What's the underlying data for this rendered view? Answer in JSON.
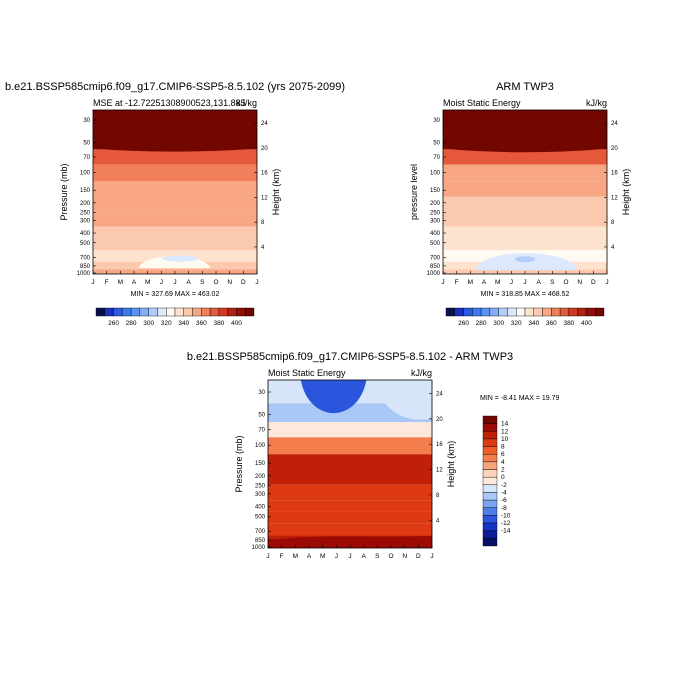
{
  "chart_data": [
    {
      "type": "heatmap",
      "title": "b.e21.BSSP585cmip6.f09_g17.CMIP6-SSP5-8.5.102 (yrs 2075-2099)",
      "left_label": "MSE at -12.72251308900523,131.885",
      "right_label": "kJ/kg",
      "ylabel": "Pressure (mb)",
      "ylabel_right": "Height (km)",
      "x_ticks": [
        "J",
        "F",
        "M",
        "A",
        "M",
        "J",
        "J",
        "A",
        "S",
        "O",
        "N",
        "D",
        "J"
      ],
      "y_ticks": [
        "30",
        "50",
        "70",
        "100",
        "150",
        "200",
        "250",
        "300",
        "400",
        "500",
        "700",
        "850",
        "1000"
      ],
      "y_ticks_right": [
        "24",
        "20",
        "16",
        "12",
        "8",
        "4"
      ],
      "stats": "MIN = 327.69 MAX = 463.02",
      "colorbar_labels": [
        "260",
        "280",
        "300",
        "320",
        "340",
        "360",
        "380",
        "400"
      ],
      "level_bands": [
        {
          "pressure": 30,
          "value": 400
        },
        {
          "pressure": 50,
          "value": 395
        },
        {
          "pressure": 70,
          "value": 372
        },
        {
          "pressure": 100,
          "value": 365
        },
        {
          "pressure": 150,
          "value": 358
        },
        {
          "pressure": 200,
          "value": 352
        },
        {
          "pressure": 300,
          "value": 350
        },
        {
          "pressure": 400,
          "value": 345
        },
        {
          "pressure": 500,
          "value": 342
        },
        {
          "pressure": 700,
          "value": 330
        },
        {
          "pressure": 850,
          "value": 345
        },
        {
          "pressure": 1000,
          "value": 355
        }
      ]
    },
    {
      "type": "heatmap",
      "title": "ARM TWP3",
      "left_label": "Moist Static Energy",
      "right_label": "kJ/kg",
      "ylabel": "pressure level",
      "ylabel_right": "Height (km)",
      "x_ticks": [
        "J",
        "F",
        "M",
        "A",
        "M",
        "J",
        "J",
        "A",
        "S",
        "O",
        "N",
        "D",
        "J"
      ],
      "y_ticks": [
        "30",
        "50",
        "70",
        "100",
        "150",
        "200",
        "250",
        "300",
        "400",
        "500",
        "700",
        "850",
        "1000"
      ],
      "y_ticks_right": [
        "24",
        "20",
        "16",
        "12",
        "8",
        "4"
      ],
      "stats": "MIN = 318.85 MAX = 468.52",
      "colorbar_labels": [
        "260",
        "280",
        "300",
        "320",
        "340",
        "360",
        "380",
        "400"
      ],
      "level_bands": [
        {
          "pressure": 30,
          "value": 400
        },
        {
          "pressure": 50,
          "value": 395
        },
        {
          "pressure": 70,
          "value": 370
        },
        {
          "pressure": 100,
          "value": 358
        },
        {
          "pressure": 150,
          "value": 350
        },
        {
          "pressure": 200,
          "value": 345
        },
        {
          "pressure": 300,
          "value": 342
        },
        {
          "pressure": 400,
          "value": 338
        },
        {
          "pressure": 500,
          "value": 332
        },
        {
          "pressure": 700,
          "value": 322
        },
        {
          "pressure": 850,
          "value": 335
        },
        {
          "pressure": 1000,
          "value": 345
        }
      ]
    },
    {
      "type": "heatmap",
      "title": "b.e21.BSSP585cmip6.f09_g17.CMIP6-SSP5-8.5.102 - ARM TWP3",
      "left_label": "Moist Static Energy",
      "right_label": "kJ/kg",
      "ylabel": "Pressure (mb)",
      "ylabel_right": "Height (km)",
      "x_ticks": [
        "J",
        "F",
        "M",
        "A",
        "M",
        "J",
        "J",
        "A",
        "S",
        "O",
        "N",
        "D",
        "J"
      ],
      "y_ticks": [
        "30",
        "50",
        "70",
        "100",
        "150",
        "200",
        "250",
        "300",
        "400",
        "500",
        "700",
        "850",
        "1000"
      ],
      "y_ticks_right": [
        "24",
        "20",
        "16",
        "12",
        "8",
        "4"
      ],
      "stats": "MIN = -8.41 MAX = 19.79",
      "colorbar_labels": [
        "14",
        "12",
        "10",
        "8",
        "6",
        "4",
        "2",
        "0",
        "-2",
        "-4",
        "-6",
        "-8",
        "-10",
        "-12",
        "-14"
      ],
      "level_bands": [
        {
          "pressure": 30,
          "value": -3
        },
        {
          "pressure": 50,
          "value": -5
        },
        {
          "pressure": 70,
          "value": -1
        },
        {
          "pressure": 100,
          "value": 5
        },
        {
          "pressure": 150,
          "value": 11
        },
        {
          "pressure": 200,
          "value": 10
        },
        {
          "pressure": 300,
          "value": 9
        },
        {
          "pressure": 400,
          "value": 9
        },
        {
          "pressure": 500,
          "value": 9
        },
        {
          "pressure": 700,
          "value": 9
        },
        {
          "pressure": 850,
          "value": 11
        },
        {
          "pressure": 1000,
          "value": 12
        }
      ]
    }
  ],
  "colors": {
    "abs_palette": [
      "#08104a",
      "#1a2fb3",
      "#2c57e0",
      "#3e78ef",
      "#5c92f5",
      "#86aef8",
      "#b3cdfb",
      "#dce8fd",
      "#fffbf2",
      "#fde3cf",
      "#fbcaae",
      "#f8a684",
      "#f27f5c",
      "#e5583a",
      "#cf3a22",
      "#b1210f",
      "#8e0f05",
      "#720700"
    ],
    "diff_palette": [
      "#720700",
      "#9b0a04",
      "#c02008",
      "#dd3a13",
      "#ee5a28",
      "#f47d4e",
      "#f8a47d",
      "#fcd2bb",
      "#fde8dc",
      "#d7e5fb",
      "#a9c7f7",
      "#7aa4f1",
      "#4f7ee8",
      "#2b55dc",
      "#1634c4",
      "#0c1d9a",
      "#081066"
    ]
  }
}
